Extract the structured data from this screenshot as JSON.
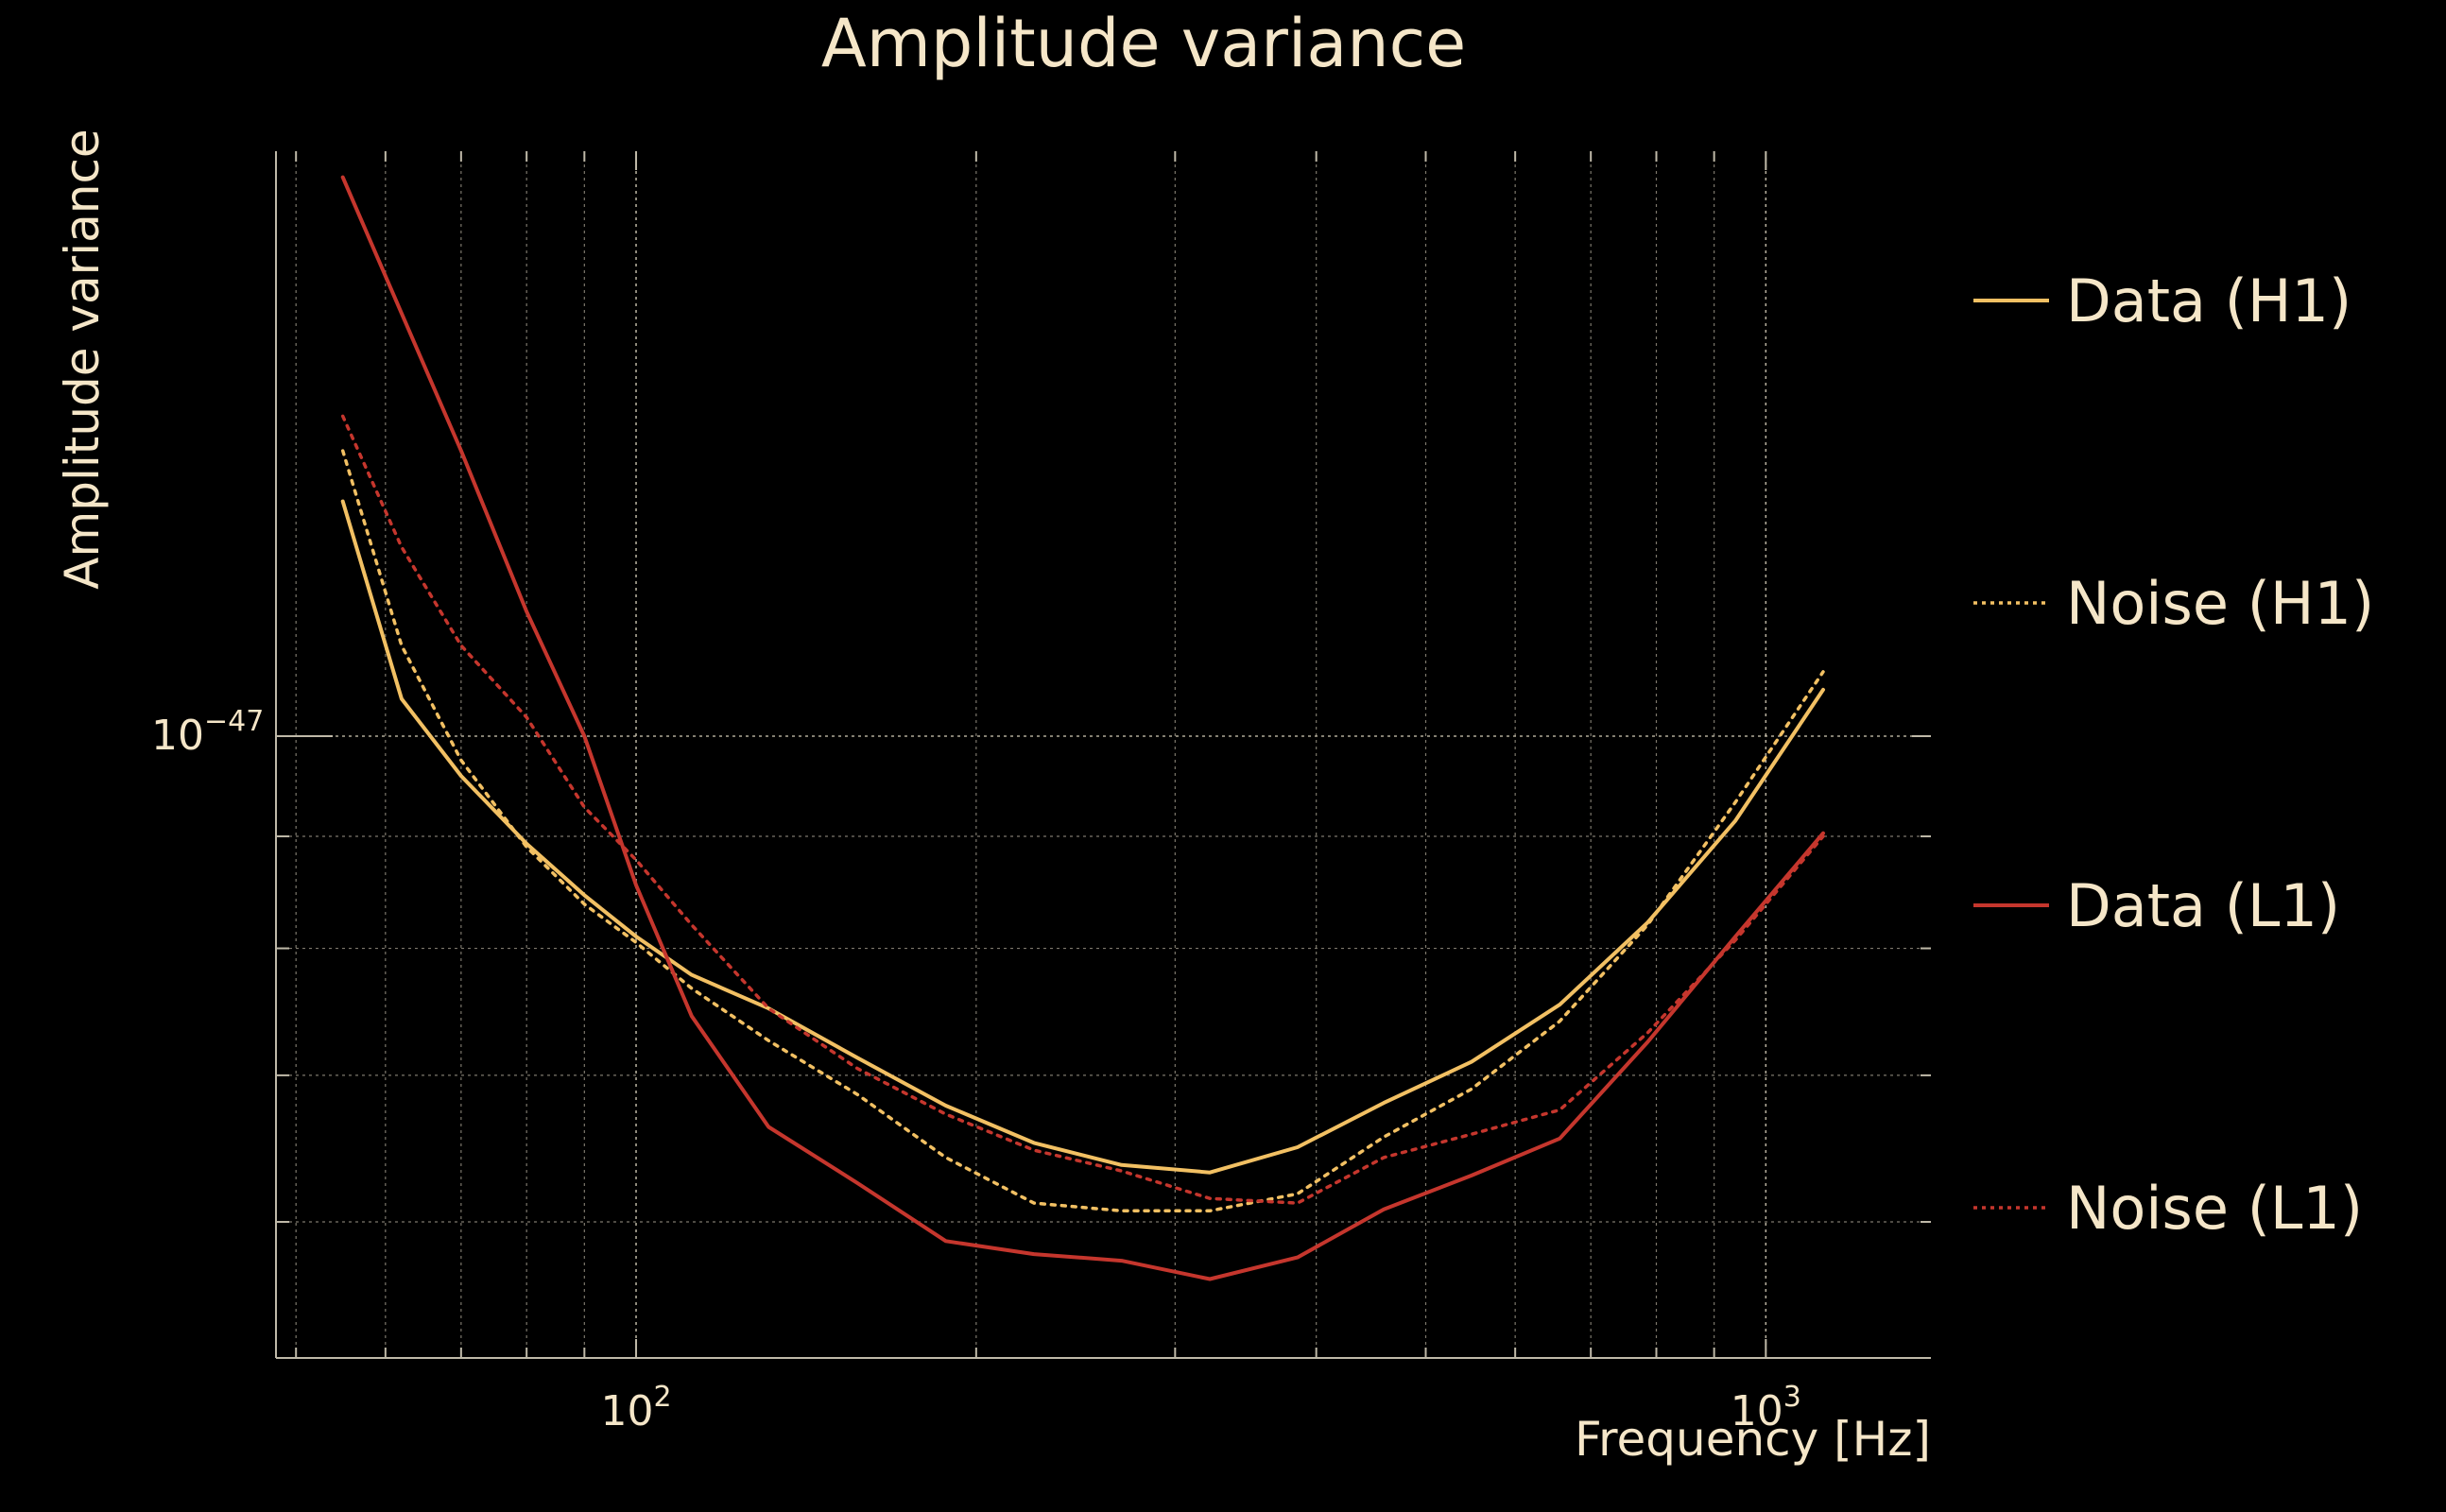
{
  "chart_data": {
    "type": "line",
    "title": "Amplitude variance",
    "xlabel": "Frequency [Hz]",
    "ylabel": "Amplitude variance",
    "xscale": "log",
    "yscale": "log",
    "xlim": [
      48,
      1400
    ],
    "ylim": [
      5.2e-48,
      1.85e-47
    ],
    "grid": true,
    "legend_position": "right",
    "x_ticks": [
      {
        "value": 100,
        "base": "10",
        "exp": "2"
      },
      {
        "value": 1000,
        "base": "10",
        "exp": "3"
      }
    ],
    "y_ticks": [
      {
        "value": 1e-47,
        "base": "10",
        "exp": "−47"
      }
    ],
    "colors": {
      "background": "#000000",
      "text": "#f5e6c8",
      "grid": "#d0c8b4",
      "axis": "#bfb9a8",
      "h1": "#f2c063",
      "l1": "#c5362d"
    },
    "series": [
      {
        "name": "Data (H1)",
        "color": "#f2c063",
        "style": "solid",
        "x": [
          55,
          62,
          70,
          80,
          90,
          100,
          112,
          131,
          157,
          188,
          225,
          269,
          322,
          385,
          459,
          549,
          657,
          786,
          940,
          1124
        ],
        "y": [
          1.28e-47,
          1.04e-47,
          9.59e-48,
          8.93e-48,
          8.46e-48,
          8.1e-48,
          7.78e-48,
          7.51e-48,
          7.13e-48,
          6.78e-48,
          6.52e-48,
          6.37e-48,
          6.32e-48,
          6.49e-48,
          6.8e-48,
          7.1e-48,
          7.54e-48,
          8.22e-48,
          9.15e-48,
          1.05e-47
        ]
      },
      {
        "name": "Noise (H1)",
        "color": "#f2c063",
        "style": "dotted",
        "x": [
          55,
          62,
          70,
          80,
          90,
          100,
          112,
          131,
          157,
          188,
          225,
          269,
          322,
          385,
          459,
          549,
          657,
          786,
          940,
          1124
        ],
        "y": [
          1.35e-47,
          1.1e-47,
          9.75e-48,
          8.9e-48,
          8.38e-48,
          8.05e-48,
          7.67e-48,
          7.26e-48,
          6.86e-48,
          6.42e-48,
          6.12e-48,
          6.07e-48,
          6.07e-48,
          6.18e-48,
          6.56e-48,
          6.9e-48,
          7.41e-48,
          8.2e-48,
          9.33e-48,
          1.07e-47
        ]
      },
      {
        "name": "Data (L1)",
        "color": "#c5362d",
        "style": "solid",
        "x": [
          55,
          62,
          70,
          80,
          90,
          100,
          112,
          131,
          157,
          188,
          225,
          269,
          322,
          385,
          459,
          549,
          657,
          786,
          940,
          1124
        ],
        "y": [
          1.8e-47,
          1.56e-47,
          1.35e-47,
          1.14e-47,
          1e-47,
          8.55e-48,
          7.45e-48,
          6.63e-48,
          6.25e-48,
          5.88e-48,
          5.8e-48,
          5.76e-48,
          5.65e-48,
          5.78e-48,
          6.08e-48,
          6.3e-48,
          6.55e-48,
          7.25e-48,
          8.1e-48,
          9.03e-48
        ]
      },
      {
        "name": "Noise (L1)",
        "color": "#c5362d",
        "style": "dotted",
        "x": [
          55,
          62,
          70,
          80,
          90,
          100,
          112,
          131,
          157,
          188,
          225,
          269,
          322,
          385,
          459,
          549,
          657,
          786,
          940,
          1124
        ],
        "y": [
          1.4e-47,
          1.22e-47,
          1.1e-47,
          1.02e-47,
          9.28e-48,
          8.78e-48,
          8.2e-48,
          7.51e-48,
          7.05e-48,
          6.72e-48,
          6.47e-48,
          6.33e-48,
          6.15e-48,
          6.12e-48,
          6.42e-48,
          6.58e-48,
          6.75e-48,
          7.32e-48,
          8.07e-48,
          9e-48
        ]
      }
    ]
  }
}
